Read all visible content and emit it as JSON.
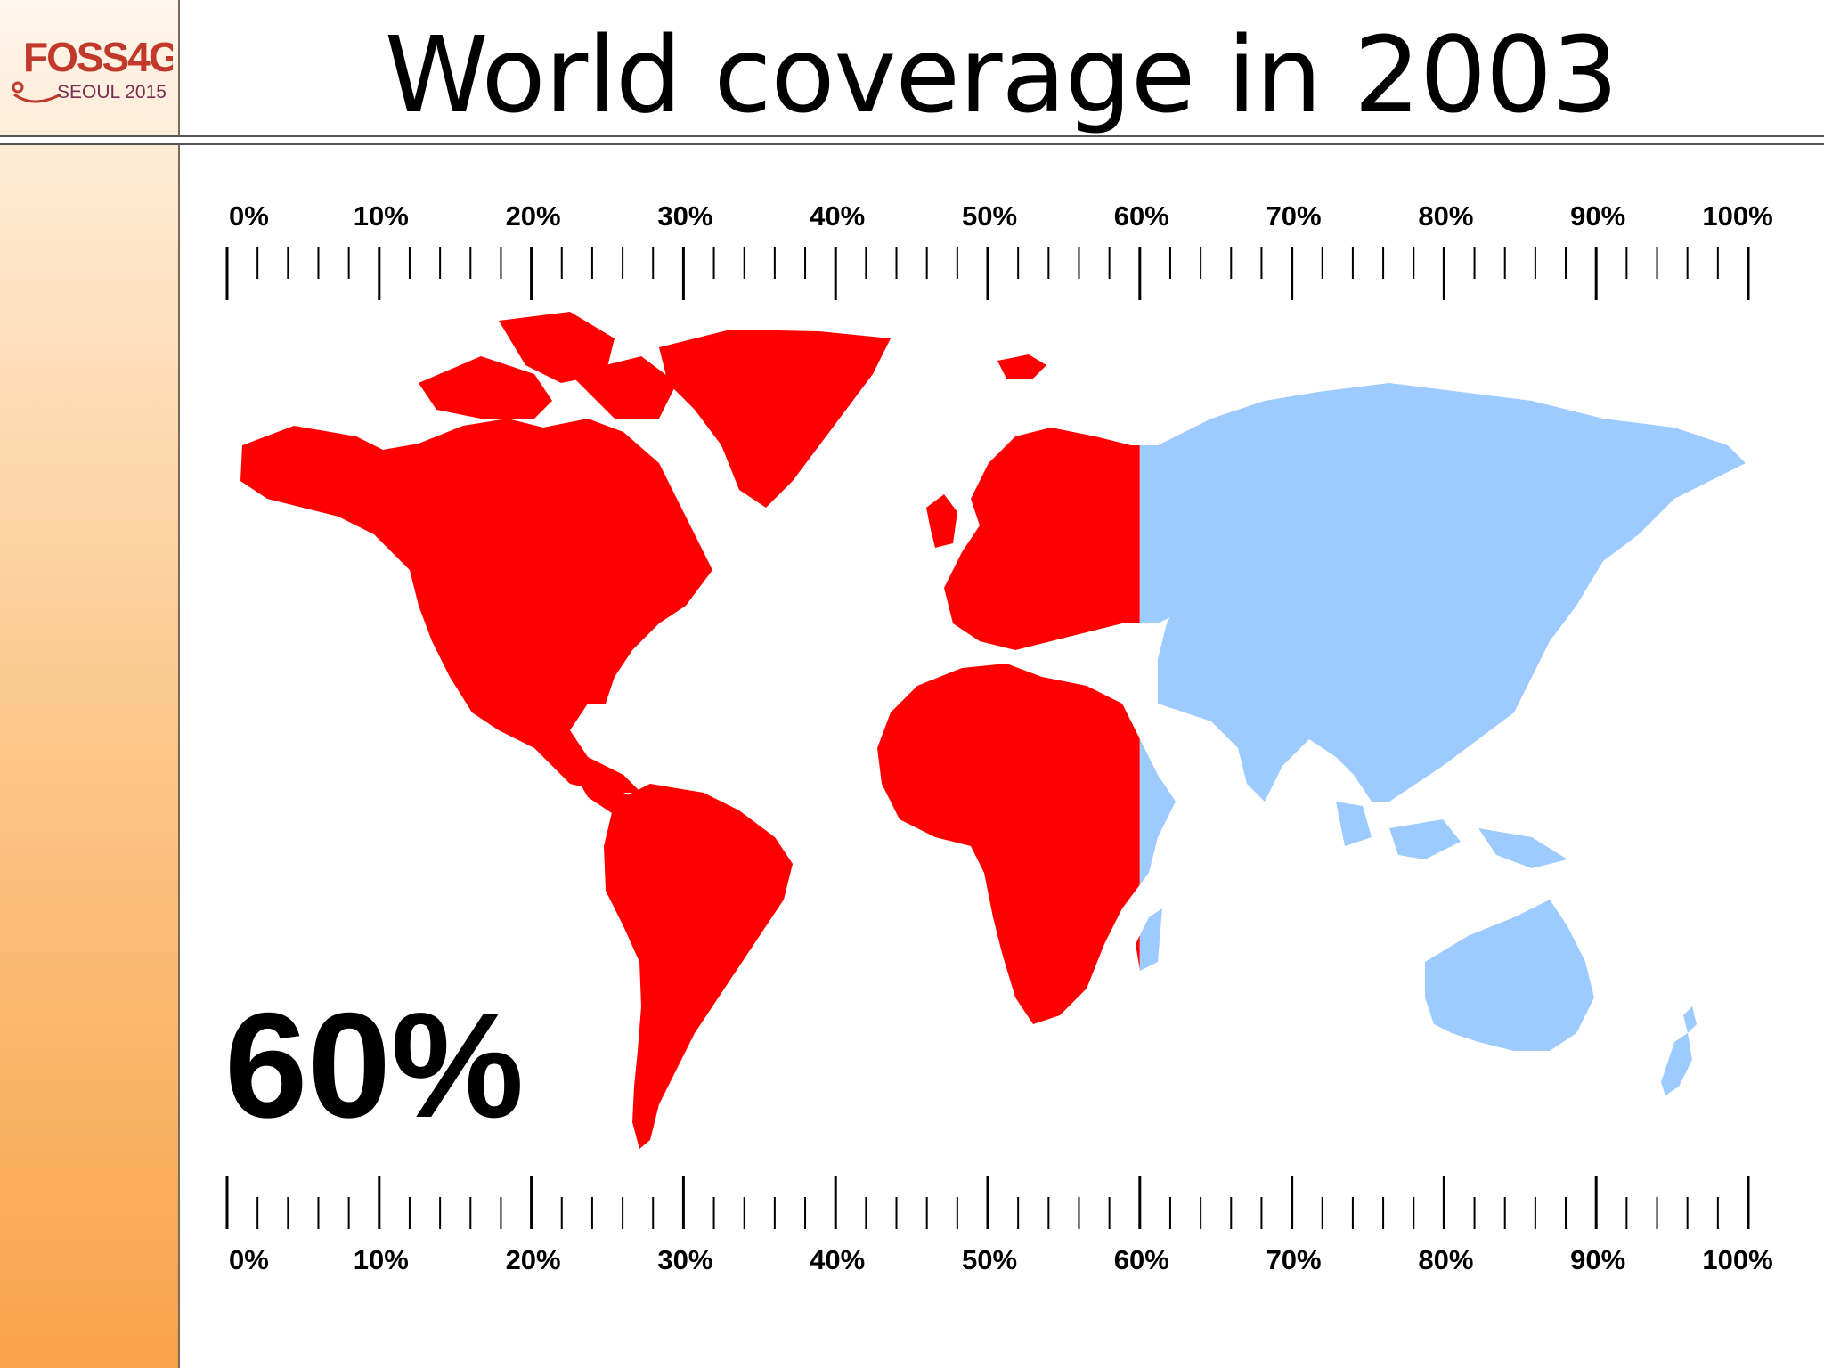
{
  "logo": {
    "brand": "FOSS4G",
    "event": "SEOUL 2015"
  },
  "title": "World coverage in 2003",
  "coverage_value": "60%",
  "coverage_fraction": 0.6,
  "colors": {
    "covered": "#ff0000",
    "not_covered": "#9ecbff"
  },
  "ruler_labels": [
    "0%",
    "10%",
    "20%",
    "30%",
    "40%",
    "50%",
    "60%",
    "70%",
    "80%",
    "90%",
    "100%"
  ]
}
